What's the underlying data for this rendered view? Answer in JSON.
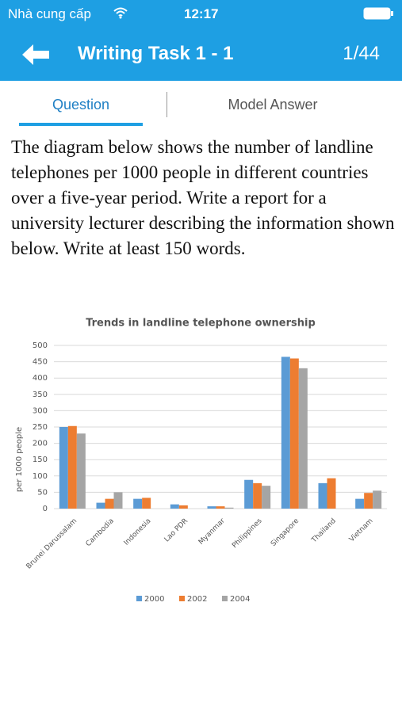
{
  "status_bar": {
    "carrier": "Nhà cung cấp",
    "time": "12:17"
  },
  "header": {
    "title": "Writing Task 1 - 1",
    "counter": "1/44"
  },
  "tabs": [
    "Question",
    "Model Answer"
  ],
  "prompt": "The diagram below shows the number of landline telephones per 1000 people in different countries over a five-year period. Write a report for a university lecturer describing the information shown below. Write at least 150 words.",
  "chart_data": {
    "type": "bar",
    "title": "Trends in landline telephone ownership",
    "y_label": "per 1000 people",
    "categories": [
      "Brunei Darussalam",
      "Cambodia",
      "Indonesia",
      "Lao PDR",
      "Myanmar",
      "Philippines",
      "Singapore",
      "Thailand",
      "Vietnam"
    ],
    "series": [
      {
        "name": "2000",
        "color": "#5b9bd5",
        "values": [
          250,
          18,
          30,
          13,
          7,
          88,
          465,
          78,
          30
        ]
      },
      {
        "name": "2002",
        "color": "#ed7d31",
        "values": [
          253,
          30,
          33,
          10,
          7,
          78,
          460,
          93,
          48
        ]
      },
      {
        "name": "2004",
        "color": "#a5a5a5",
        "values": [
          230,
          50,
          null,
          null,
          3,
          70,
          430,
          null,
          55
        ]
      }
    ],
    "ylim": [
      0,
      500
    ],
    "yticks": [
      0,
      50,
      100,
      150,
      200,
      250,
      300,
      350,
      400,
      450,
      500
    ],
    "grid": true,
    "legend": "bottom"
  }
}
